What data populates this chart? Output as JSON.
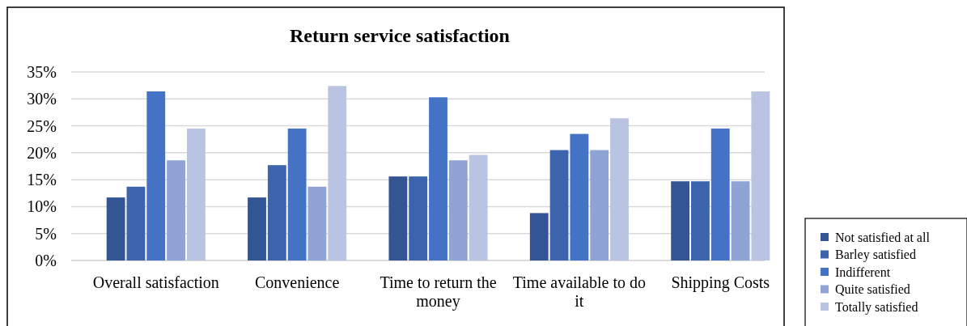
{
  "chart_data": {
    "type": "bar",
    "title": "Return service satisfaction",
    "categories": [
      "Overall satisfaction",
      "Convenience",
      "Time to return the money",
      "Time available to do it",
      "Shipping Costs"
    ],
    "series": [
      {
        "name": "Not satisfied at all",
        "color": "#335593",
        "values": [
          11.7,
          11.7,
          15.6,
          8.8,
          14.7
        ]
      },
      {
        "name": "Barley satisfied",
        "color": "#3c64ac",
        "values": [
          13.7,
          17.7,
          15.6,
          20.5,
          14.7
        ]
      },
      {
        "name": "Indifferent",
        "color": "#4472c4",
        "values": [
          31.4,
          24.5,
          30.3,
          23.5,
          24.5
        ]
      },
      {
        "name": "Quite satisfied",
        "color": "#8fa4d4",
        "values": [
          18.6,
          13.7,
          18.6,
          20.5,
          14.7
        ]
      },
      {
        "name": "Totally satisfied",
        "color": "#b9c3e2",
        "values": [
          24.5,
          32.4,
          19.6,
          26.4,
          31.4
        ]
      }
    ],
    "ylim": [
      0,
      35
    ],
    "yticks": [
      {
        "value": 0,
        "label": "0%"
      },
      {
        "value": 5,
        "label": "5%"
      },
      {
        "value": 10,
        "label": "10%"
      },
      {
        "value": 15,
        "label": "15%"
      },
      {
        "value": 20,
        "label": "20%"
      },
      {
        "value": 25,
        "label": "25%"
      },
      {
        "value": 30,
        "label": "30%"
      },
      {
        "value": 35,
        "label": "35%"
      }
    ],
    "grid": "y",
    "legend": "right"
  }
}
